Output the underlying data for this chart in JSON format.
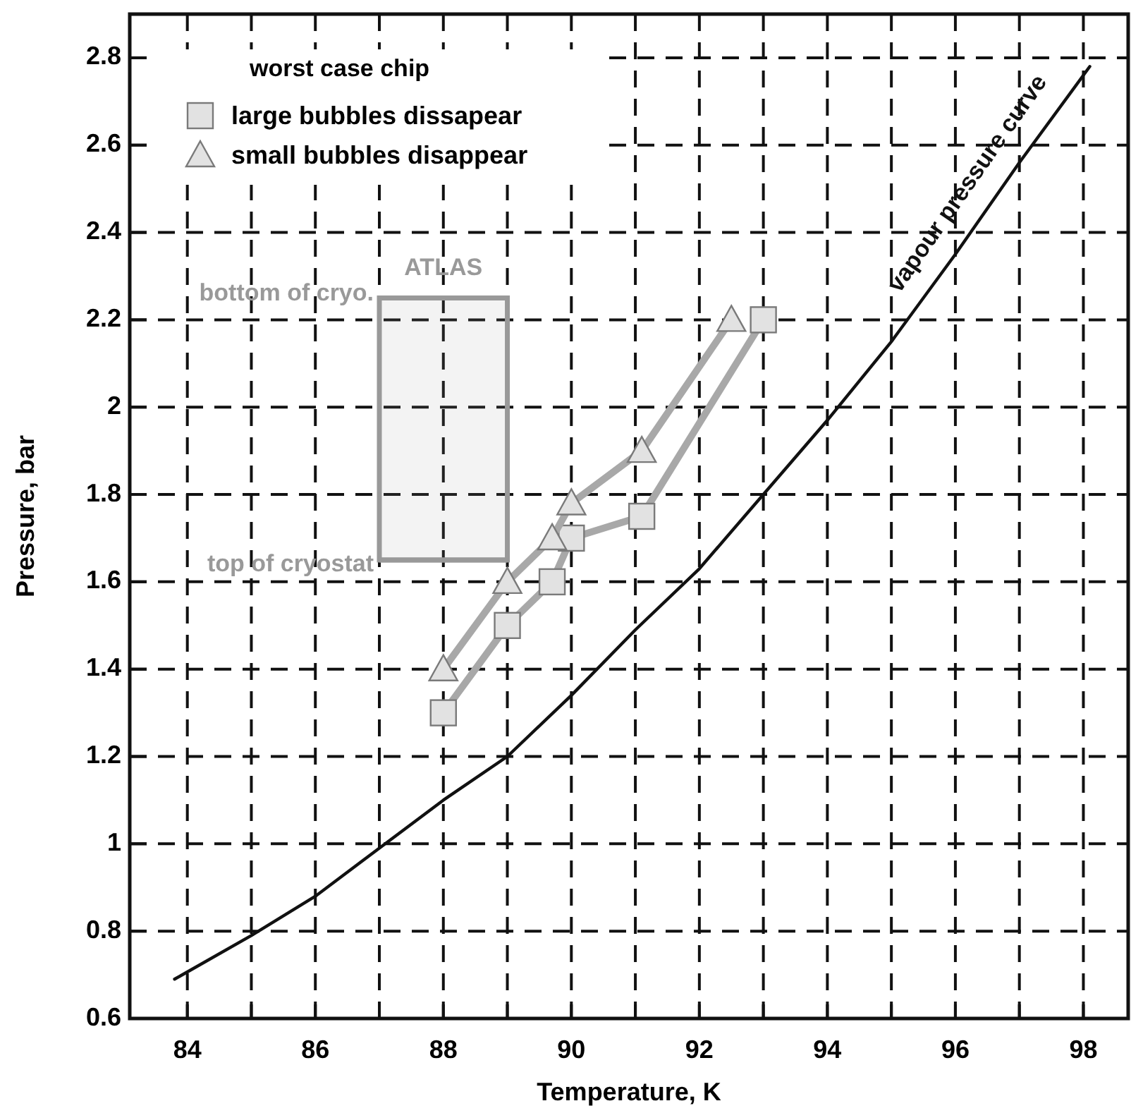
{
  "chart_data": {
    "type": "line",
    "xlabel": "Temperature, K",
    "ylabel": "Pressure, bar",
    "legend_title": "worst case chip",
    "legend": "top left",
    "grid": true,
    "xlim": [
      83.1,
      98.7
    ],
    "ylim": [
      0.6,
      2.9
    ],
    "xticks": [
      84,
      {
        "value": 85,
        "label": null
      },
      86,
      {
        "value": 87,
        "label": null
      },
      88,
      {
        "value": 89,
        "label": null
      },
      90,
      {
        "value": 91,
        "label": null
      },
      92,
      {
        "value": 93,
        "label": null
      },
      94,
      {
        "value": 95,
        "label": null
      },
      96,
      {
        "value": 97,
        "label": null
      },
      98
    ],
    "yticks": [
      0.6,
      0.8,
      1,
      1.2,
      1.4,
      1.6,
      1.8,
      2,
      2.2,
      2.4,
      2.6,
      2.8
    ],
    "series": [
      {
        "name": "large bubbles dissapear",
        "color": "#a8a8a8",
        "marker": "square",
        "x": [
          88,
          89,
          89.7,
          90,
          91.1,
          93
        ],
        "values": [
          1.3,
          1.5,
          1.6,
          1.7,
          1.75,
          2.2
        ]
      },
      {
        "name": "small bubbles disappear",
        "color": "#a8a8a8",
        "marker": "triangle",
        "x": [
          88,
          89,
          89.7,
          90,
          91.1,
          92.5
        ],
        "values": [
          1.4,
          1.6,
          1.7,
          1.78,
          1.9,
          2.2
        ]
      },
      {
        "color": "#111111",
        "marker": "none",
        "x": [
          83.8,
          85,
          86,
          87,
          88,
          89,
          90,
          91,
          92,
          93,
          94,
          95,
          96,
          97,
          98.1
        ],
        "values": [
          0.69,
          0.79,
          0.88,
          0.99,
          1.1,
          1.2,
          1.34,
          1.49,
          1.63,
          1.8,
          1.97,
          2.15,
          2.35,
          2.56,
          2.78
        ]
      }
    ],
    "bands": [
      {
        "axis": "x",
        "from": 87,
        "to": 89,
        "label": "ATLAS",
        "color": "#999999"
      }
    ],
    "ref_lines": [
      {
        "axis": "y",
        "value": 2.25,
        "label": "bottom of cryo.",
        "color": "#999999"
      },
      {
        "axis": "y",
        "value": 1.65,
        "label": "top of cryostat",
        "color": "#999999"
      }
    ],
    "annotations": [
      {
        "text": "vapour pressure curve",
        "x": 96.6,
        "y": 2.47
      }
    ]
  }
}
